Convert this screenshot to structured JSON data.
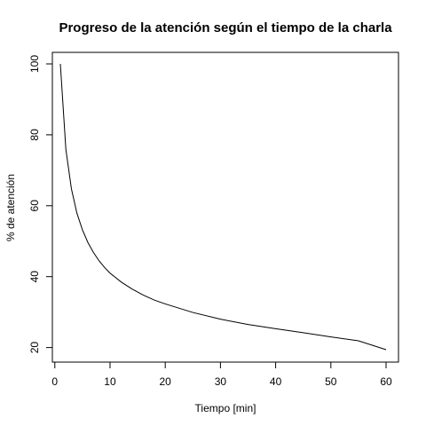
{
  "chart_data": {
    "type": "line",
    "title": "Progreso de la atención según el tiempo de la charla",
    "xlabel": "Tiempo [min]",
    "ylabel": "% de atención",
    "xlim": [
      1,
      60
    ],
    "ylim": [
      19.4,
      100
    ],
    "x_ticks": [
      0,
      10,
      20,
      30,
      40,
      50,
      60
    ],
    "y_ticks": [
      20,
      40,
      60,
      80,
      100
    ],
    "grid": false,
    "series": [
      {
        "x": [
          1,
          2,
          3,
          4,
          5,
          6,
          7,
          8,
          9,
          10,
          12,
          14,
          16,
          18,
          20,
          25,
          30,
          35,
          40,
          45,
          50,
          55,
          60
        ],
        "y": [
          100,
          75.9,
          64.8,
          57.9,
          53.2,
          49.6,
          46.8,
          44.5,
          42.6,
          41.0,
          38.5,
          36.5,
          34.8,
          33.4,
          32.3,
          29.9,
          28.0,
          26.5,
          25.3,
          24.2,
          23.0,
          21.9,
          19.4
        ],
        "color": "#000000"
      }
    ]
  }
}
